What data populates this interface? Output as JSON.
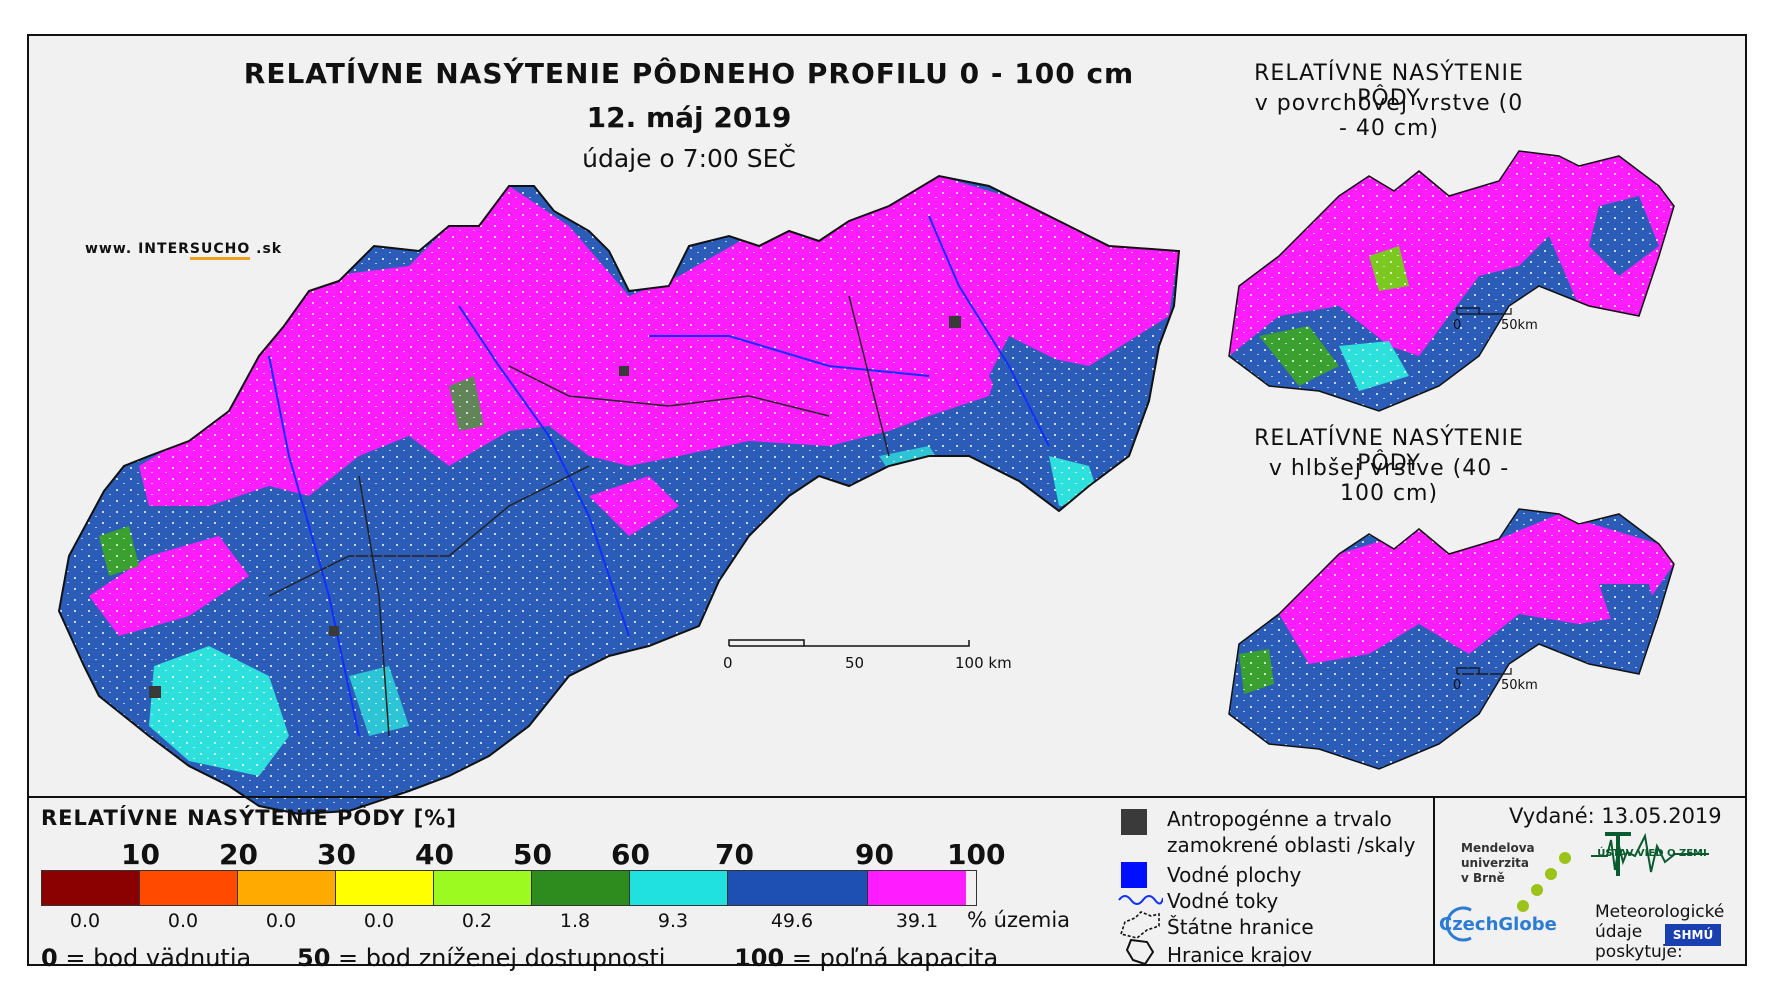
{
  "header": {
    "title": "RELATÍVNE NASÝTENIE PÔDNEHO PROFILU 0 - 100 cm",
    "date": "12. máj 2019",
    "time": "údaje o 7:00 SEČ"
  },
  "brand": {
    "part1": "www. INTER",
    "part2": "SUCHO",
    "part3": " .sk"
  },
  "main_map": {
    "scale": [
      "0",
      "50",
      "100 km"
    ]
  },
  "inset_top": {
    "title1": "RELATÍVNE NASÝTENIE PÔDY",
    "title2": "v povrchovej vrstve (0 - 40 cm)",
    "scale": [
      "0",
      "50km"
    ]
  },
  "inset_bottom": {
    "title1": "RELATÍVNE NASÝTENIE PÔDY",
    "title2": "v hlbšej vrstve (40 - 100 cm)",
    "scale": [
      "0",
      "50km"
    ]
  },
  "legend": {
    "title": "RELATÍVNE NASÝTENIE PÔDY [%]",
    "class_labels": [
      "10",
      "20",
      "30",
      "40",
      "50",
      "60",
      "70",
      "90",
      "100"
    ],
    "colors": [
      "#8b0000",
      "#ff4a00",
      "#ffaa00",
      "#ffff00",
      "#9cfa20",
      "#2e8b1e",
      "#20e0e0",
      "#1e50b4",
      "#ff1cff"
    ],
    "percent_of_territory": [
      "0.0",
      "0.0",
      "0.0",
      "0.0",
      "0.2",
      "1.8",
      "9.3",
      "49.6",
      "39.1"
    ],
    "percent_unit": "% územia",
    "footnote": {
      "v0": "0",
      "t0": "= bod vädnutia",
      "v50": "50",
      "t50": "= bod zníženej dostupnosti",
      "v100": "100",
      "t100": "= poľná kapacita"
    },
    "symbols": {
      "anthropogenic": "Antropogénne a trvalo zamokrené oblasti /skaly",
      "water_bodies": "Vodné plochy",
      "streams": "Vodné toky",
      "state_border": "Štátne hranice",
      "region_border": "Hranice krajov"
    },
    "symbol_colors": {
      "anthropogenic": "#3a3a3a",
      "water_bodies": "#0010ff",
      "streams": "#1030ff"
    }
  },
  "footer": {
    "issued": "Vydané: 13.05.2019",
    "mendel": [
      "Mendelova",
      "univerzita",
      "v Brně"
    ],
    "czechglobe": "CzechGlobe",
    "uvz": "ÚSTAV VIED O ZEMI",
    "meteo": [
      "Meteorologické",
      "údaje",
      "poskytuje:"
    ],
    "shmu": "SHMÚ"
  }
}
